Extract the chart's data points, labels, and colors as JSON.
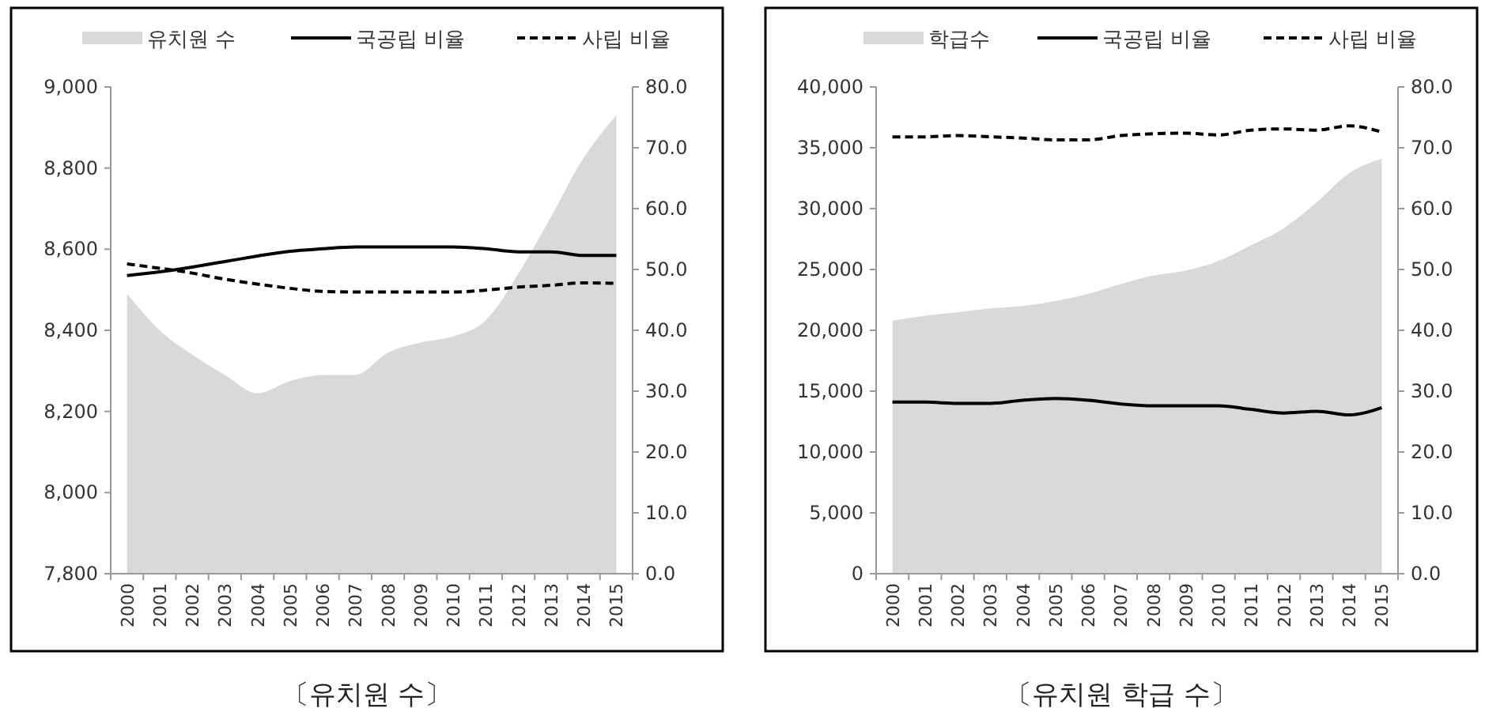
{
  "chart_data": [
    {
      "type": "area",
      "title": "〔유치원 수〕",
      "categories": [
        "2000",
        "2001",
        "2002",
        "2003",
        "2004",
        "2005",
        "2006",
        "2007",
        "2008",
        "2009",
        "2010",
        "2011",
        "2012",
        "2013",
        "2014",
        "2015"
      ],
      "series": [
        {
          "name": "유치원 수",
          "color": "#d9d9d9",
          "values": [
            8490,
            8400,
            8340,
            8290,
            8245,
            8275,
            8290,
            8290,
            8345,
            8370,
            8385,
            8425,
            8540,
            8680,
            8825,
            8930
          ]
        },
        {
          "name": "국공립 비율",
          "type": "line",
          "axis": "y2",
          "color": "#000000",
          "line_style": "solid",
          "values": [
            49.0,
            49.6,
            50.4,
            51.3,
            52.2,
            53.0,
            53.4,
            53.7,
            53.7,
            53.7,
            53.7,
            53.4,
            52.9,
            52.9,
            52.3,
            52.3
          ]
        },
        {
          "name": "사립 비율",
          "type": "line",
          "axis": "y2",
          "color": "#000000",
          "line_style": "dashed",
          "values": [
            50.9,
            50.2,
            49.4,
            48.4,
            47.6,
            46.9,
            46.4,
            46.3,
            46.3,
            46.3,
            46.3,
            46.6,
            47.1,
            47.4,
            47.8,
            47.7
          ]
        }
      ],
      "ylim": [
        7800,
        9000
      ],
      "yticks": [
        {
          "value": 7800,
          "label": "7,800"
        },
        {
          "value": 8000,
          "label": "8,000"
        },
        {
          "value": 8200,
          "label": "8,200"
        },
        {
          "value": 8400,
          "label": "8,400"
        },
        {
          "value": 8600,
          "label": "8,600"
        },
        {
          "value": 8800,
          "label": "8,800"
        },
        {
          "value": 9000,
          "label": "9,000"
        }
      ],
      "y2lim": [
        0,
        80
      ],
      "y2ticks": [
        {
          "value": 0,
          "label": "0.0"
        },
        {
          "value": 10,
          "label": "10.0"
        },
        {
          "value": 20,
          "label": "20.0"
        },
        {
          "value": 30,
          "label": "30.0"
        },
        {
          "value": 40,
          "label": "40.0"
        },
        {
          "value": 50,
          "label": "50.0"
        },
        {
          "value": 60,
          "label": "60.0"
        },
        {
          "value": 70,
          "label": "70.0"
        },
        {
          "value": 80,
          "label": "80.0"
        }
      ],
      "legend": "top"
    },
    {
      "type": "area",
      "title": "〔유치원 학급 수〕",
      "categories": [
        "2000",
        "2001",
        "2002",
        "2003",
        "2004",
        "2005",
        "2006",
        "2007",
        "2008",
        "2009",
        "2010",
        "2011",
        "2012",
        "2013",
        "2014",
        "2015"
      ],
      "series": [
        {
          "name": "학급수",
          "color": "#d9d9d9",
          "values": [
            20800,
            21200,
            21500,
            21800,
            22000,
            22400,
            23000,
            23800,
            24500,
            24900,
            25700,
            27000,
            28400,
            30500,
            32900,
            34100
          ]
        },
        {
          "name": "국공립 비율",
          "type": "line",
          "axis": "y2",
          "color": "#000000",
          "line_style": "solid",
          "values": [
            28.2,
            28.2,
            28.0,
            28.0,
            28.5,
            28.8,
            28.5,
            27.9,
            27.6,
            27.6,
            27.6,
            27.0,
            26.4,
            26.7,
            26.1,
            27.3
          ]
        },
        {
          "name": "사립 비율",
          "type": "line",
          "axis": "y2",
          "color": "#000000",
          "line_style": "dashed",
          "values": [
            71.8,
            71.8,
            72.0,
            71.8,
            71.6,
            71.3,
            71.3,
            72.0,
            72.3,
            72.4,
            72.1,
            72.9,
            73.1,
            72.9,
            73.6,
            72.6
          ]
        }
      ],
      "ylim": [
        0,
        40000
      ],
      "yticks": [
        0,
        {
          "value": 5000,
          "label": "5,000"
        },
        {
          "value": 10000,
          "label": "10,000"
        },
        {
          "value": 15000,
          "label": "15,000"
        },
        {
          "value": 20000,
          "label": "20,000"
        },
        {
          "value": 25000,
          "label": "25,000"
        },
        {
          "value": 30000,
          "label": "30,000"
        },
        {
          "value": 35000,
          "label": "35,000"
        },
        {
          "value": 40000,
          "label": "40,000"
        }
      ],
      "y2lim": [
        0,
        80
      ],
      "y2ticks": [
        {
          "value": 0,
          "label": "0.0"
        },
        {
          "value": 10,
          "label": "10.0"
        },
        {
          "value": 20,
          "label": "20.0"
        },
        {
          "value": 30,
          "label": "30.0"
        },
        {
          "value": 40,
          "label": "40.0"
        },
        {
          "value": 50,
          "label": "50.0"
        },
        {
          "value": 60,
          "label": "60.0"
        },
        {
          "value": 70,
          "label": "70.0"
        },
        {
          "value": 80,
          "label": "80.0"
        }
      ],
      "legend": "top"
    }
  ]
}
